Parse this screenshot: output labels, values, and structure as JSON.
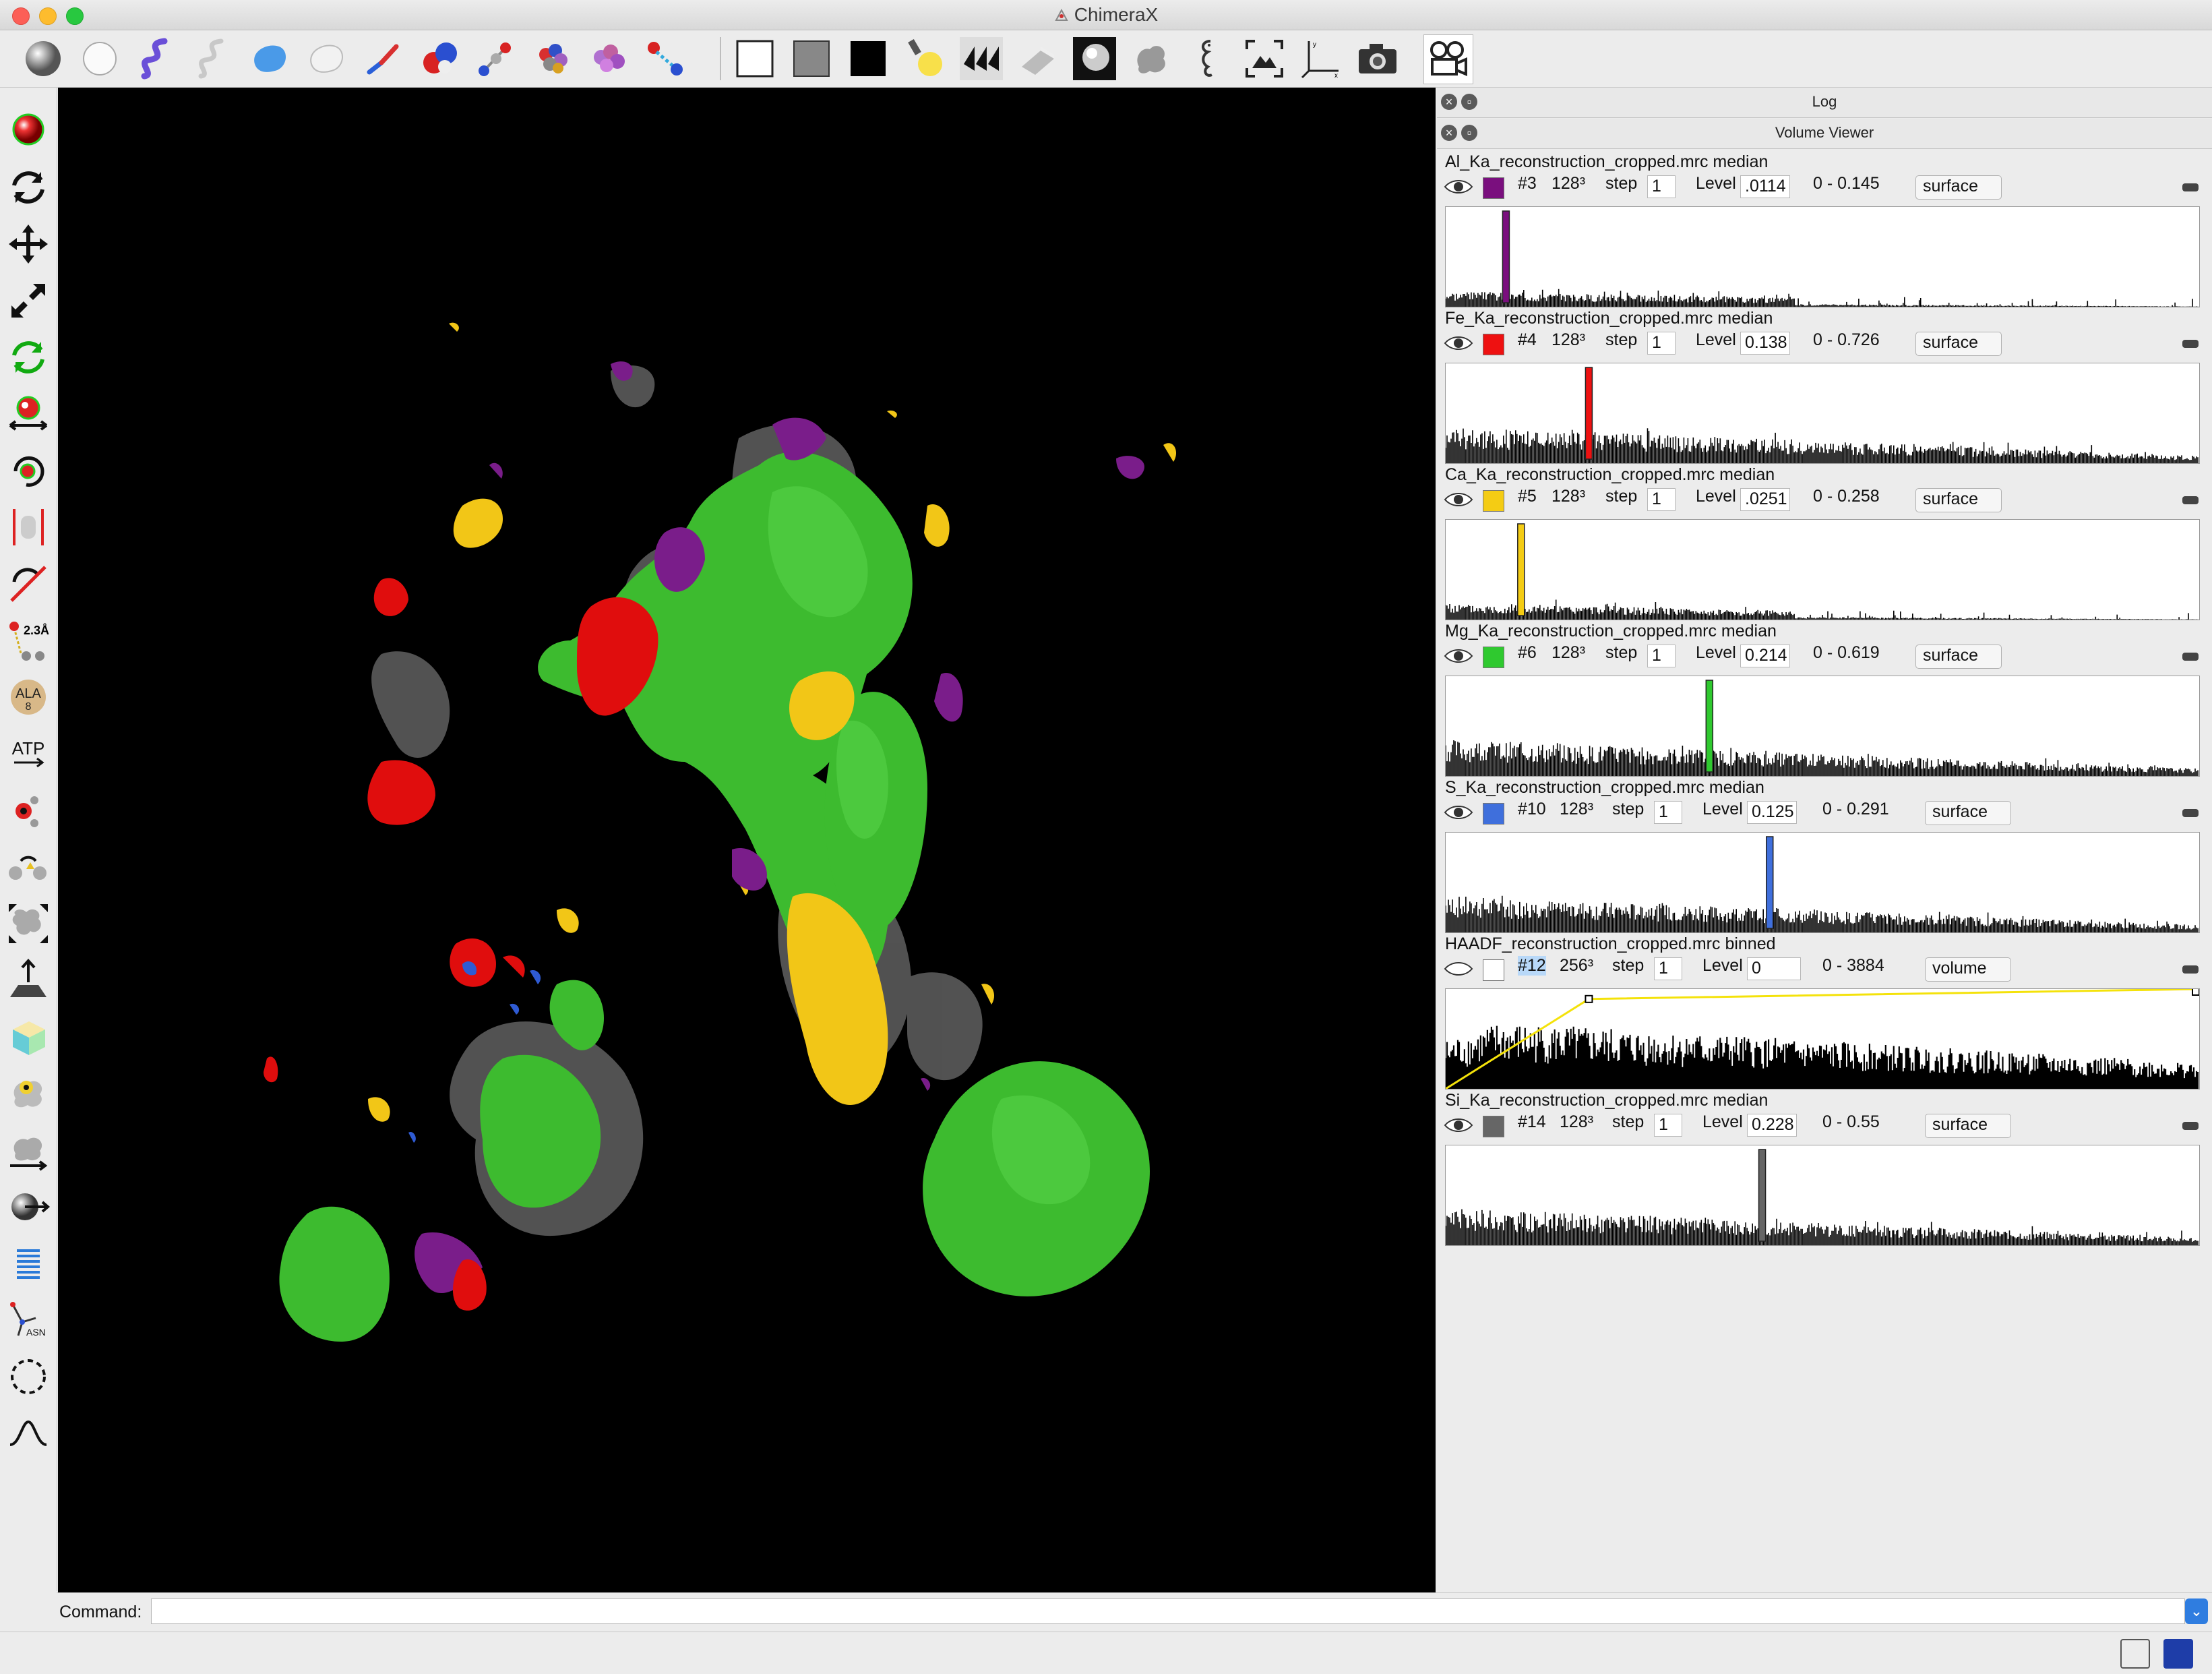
{
  "window": {
    "title": "ChimeraX"
  },
  "toolbar_icons": [
    "ball-sphere-icon",
    "white-sphere-icon",
    "ribbon-icon",
    "thin-ribbon-icon",
    "blue-surface-icon",
    "white-surface-icon",
    "stick-icon",
    "ball-stick-icon",
    "ball-stick-small-icon",
    "molecule-atoms-icon",
    "molecule-cartoon-icon",
    "bond-icon",
    "white-background-icon",
    "gray-background-icon",
    "black-background-icon",
    "lighting-icon",
    "shadows-icon",
    "flat-icon",
    "silhouette-icon",
    "surface-blob-icon",
    "seahorse-icon",
    "view-all-icon",
    "axes-icon",
    "camera-icon",
    "movie-camera-icon"
  ],
  "left_tools": [
    "select-icon",
    "rotate-icon",
    "translate-icon",
    "zoom-icon",
    "rotate-selected-icon",
    "move-atom-icon",
    "rotate-bond-icon",
    "clip-icon",
    "delete-icon",
    "distance-icon",
    "label-icon",
    "atp-icon",
    "pivot-icon",
    "swap-icon",
    "resize-icon",
    "move-plane-icon",
    "crop-box-icon",
    "map-values-icon",
    "move-picked-icon",
    "zone-icon",
    "spring-icon",
    "swapaa-icon",
    "lasso-icon",
    "contour-icon"
  ],
  "left_labels": {
    "distance": "2.3Å",
    "residue": "ALA",
    "residue_num": "8",
    "atp": "ATP",
    "swapaa": "ASN"
  },
  "log_panel": {
    "title": "Log"
  },
  "volume_viewer": {
    "title": "Volume Viewer",
    "labels": {
      "step": "step",
      "level": "Level"
    },
    "volumes": [
      {
        "name": "Al_Ka_reconstruction_cropped.mrc median",
        "id": "#3",
        "size": "128³",
        "step": "1",
        "level": ".0114",
        "range": "0 - 0.145",
        "style": "surface",
        "color": "#7a0f7e",
        "marker_pos": 0.08
      },
      {
        "name": "Fe_Ka_reconstruction_cropped.mrc median",
        "id": "#4",
        "size": "128³",
        "step": "1",
        "level": "0.138",
        "range": "0 - 0.726",
        "style": "surface",
        "color": "#ee1111",
        "marker_pos": 0.19
      },
      {
        "name": "Ca_Ka_reconstruction_cropped.mrc median",
        "id": "#5",
        "size": "128³",
        "step": "1",
        "level": ".0251",
        "range": "0 - 0.258",
        "style": "surface",
        "color": "#f4cc14",
        "marker_pos": 0.1
      },
      {
        "name": "Mg_Ka_reconstruction_cropped.mrc median",
        "id": "#6",
        "size": "128³",
        "step": "1",
        "level": "0.214",
        "range": "0 - 0.619",
        "style": "surface",
        "color": "#2fc92f",
        "marker_pos": 0.35
      },
      {
        "name": "S_Ka_reconstruction_cropped.mrc median",
        "id": "#10",
        "size": "128³",
        "step": "1",
        "level": "0.125",
        "range": "0 - 0.291",
        "style": "surface",
        "color": "#3f6fdc",
        "marker_pos": 0.43
      },
      {
        "name": "HAADF_reconstruction_cropped.mrc binned",
        "id": "#12",
        "size": "256³",
        "step": "1",
        "level": "0",
        "range": "0 - 3884",
        "style": "volume",
        "color": "#ffffff",
        "marker_pos": 0.0
      },
      {
        "name": "Si_Ka_reconstruction_cropped.mrc median",
        "id": "#14",
        "size": "128³",
        "step": "1",
        "level": "0.228",
        "range": "0 - 0.55",
        "style": "surface",
        "color": "#666666",
        "marker_pos": 0.42
      }
    ]
  },
  "command": {
    "label": "Command:",
    "value": ""
  }
}
